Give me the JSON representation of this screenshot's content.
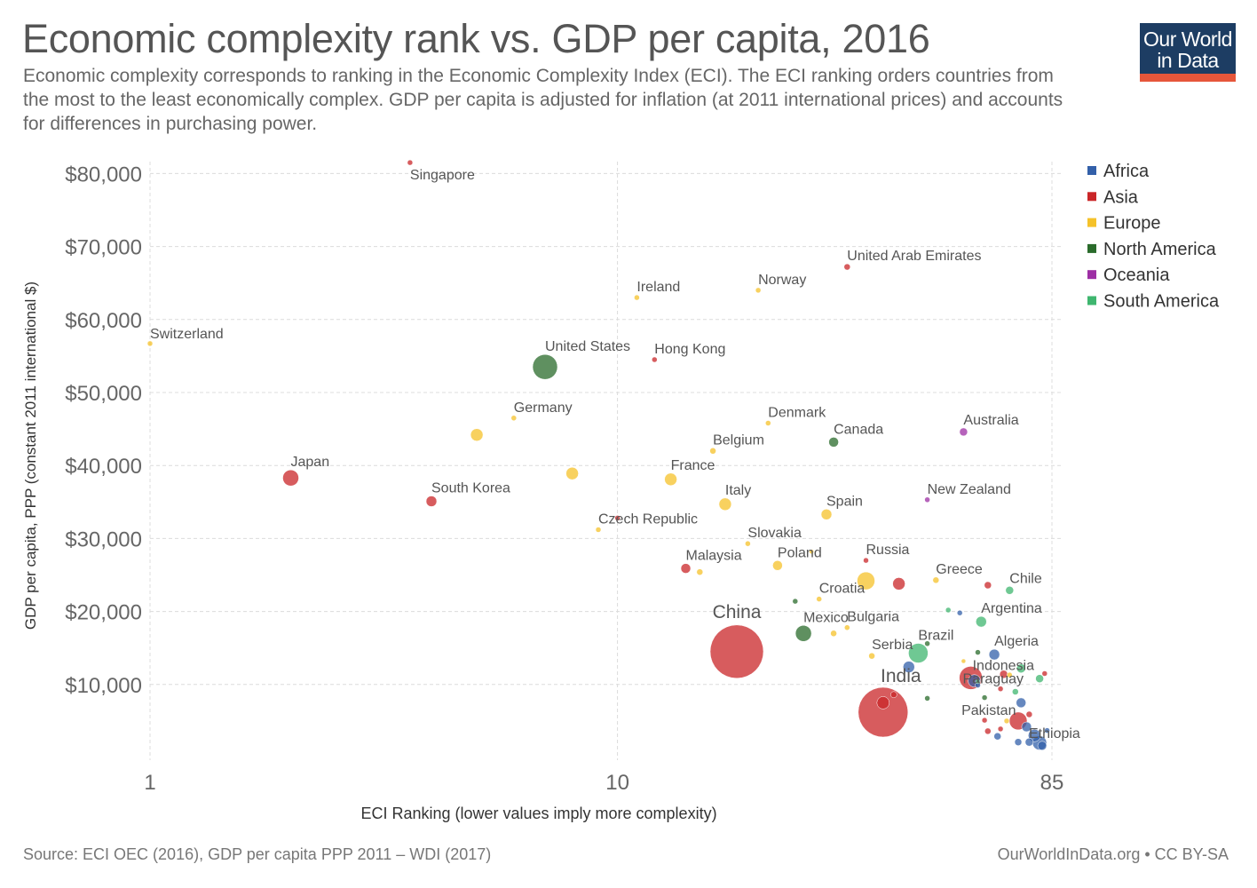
{
  "header": {
    "title": "Economic complexity rank vs. GDP per capita, 2016",
    "subtitle": "Economic complexity corresponds to ranking in the Economic Complexity Index (ECI). The ECI ranking orders countries from the most to the least economically complex. GDP per capita is adjusted for inflation (at 2011 international prices) and accounts for differences in purchasing power."
  },
  "logo": {
    "line1": "Our World",
    "line2": "in Data",
    "bg": "#1d3d63",
    "accent": "#e6563a"
  },
  "footer": {
    "source": "Source: ECI OEC (2016), GDP per capita PPP 2011 – WDI (2017)",
    "credit": "OurWorldInData.org • CC BY-SA"
  },
  "chart_data": {
    "type": "scatter",
    "xlabel": "ECI Ranking (lower values imply more complexity)",
    "ylabel": "GDP per capita, PPP (constant 2011 international $)",
    "x_scale": "log",
    "xlim": [
      1,
      85
    ],
    "x_ticks": [
      1,
      10,
      85
    ],
    "x_tick_labels": [
      "1",
      "10",
      "85"
    ],
    "ylim": [
      0,
      82000
    ],
    "y_ticks": [
      10000,
      20000,
      30000,
      40000,
      50000,
      60000,
      70000,
      80000
    ],
    "y_tick_labels": [
      "$10,000",
      "$20,000",
      "$30,000",
      "$40,000",
      "$50,000",
      "$60,000",
      "$70,000",
      "$80,000"
    ],
    "grid": true,
    "legend": {
      "placement": "right",
      "entries": [
        {
          "name": "Africa",
          "color": "#3360a9"
        },
        {
          "name": "Asia",
          "color": "#ca2628"
        },
        {
          "name": "Europe",
          "color": "#f5c22a"
        },
        {
          "name": "North America",
          "color": "#2a6b2b"
        },
        {
          "name": "Oceania",
          "color": "#9d2fa4"
        },
        {
          "name": "South America",
          "color": "#3fb66f"
        }
      ]
    },
    "points": [
      {
        "label": "Singapore",
        "region": "Asia",
        "x": 3.6,
        "y": 81500,
        "size": 3
      },
      {
        "label": "Switzerland",
        "region": "Europe",
        "x": 1,
        "y": 56700,
        "size": 3
      },
      {
        "label": "Ireland",
        "region": "Europe",
        "x": 11,
        "y": 63000,
        "size": 3
      },
      {
        "label": "Norway",
        "region": "Europe",
        "x": 20,
        "y": 64000,
        "size": 3
      },
      {
        "label": "United Arab Emirates",
        "region": "Asia",
        "x": 31,
        "y": 67200,
        "size": 3.5
      },
      {
        "label": "United States",
        "region": "North America",
        "x": 7,
        "y": 53500,
        "size": 14
      },
      {
        "label": "Hong Kong",
        "region": "Asia",
        "x": 12,
        "y": 54500,
        "size": 3
      },
      {
        "label": "Germany",
        "region": "Europe",
        "x": 6,
        "y": 46500,
        "size": 3
      },
      {
        "label": "",
        "region": "Europe",
        "x": 5,
        "y": 44200,
        "size": 7
      },
      {
        "label": "Japan",
        "region": "Asia",
        "x": 2,
        "y": 38300,
        "size": 9
      },
      {
        "label": "",
        "region": "Europe",
        "x": 8,
        "y": 38900,
        "size": 7
      },
      {
        "label": "Denmark",
        "region": "Europe",
        "x": 21,
        "y": 45800,
        "size": 3
      },
      {
        "label": "Canada",
        "region": "North America",
        "x": 29,
        "y": 43200,
        "size": 5.5
      },
      {
        "label": "Australia",
        "region": "Oceania",
        "x": 55,
        "y": 44600,
        "size": 4.5
      },
      {
        "label": "Belgium",
        "region": "Europe",
        "x": 16,
        "y": 42000,
        "size": 3.5
      },
      {
        "label": "France",
        "region": "Europe",
        "x": 13,
        "y": 38100,
        "size": 7
      },
      {
        "label": "South Korea",
        "region": "Asia",
        "x": 4,
        "y": 35100,
        "size": 6
      },
      {
        "label": "Italy",
        "region": "Europe",
        "x": 17,
        "y": 34700,
        "size": 7
      },
      {
        "label": "Spain",
        "region": "Europe",
        "x": 28,
        "y": 33300,
        "size": 6
      },
      {
        "label": "New Zealand",
        "region": "Oceania",
        "x": 46,
        "y": 35300,
        "size": 3
      },
      {
        "label": "Czech Republic",
        "region": "Europe",
        "x": 9.1,
        "y": 31200,
        "size": 3
      },
      {
        "label": "",
        "region": "Asia",
        "x": 10,
        "y": 32800,
        "size": 3
      },
      {
        "label": "Slovakia",
        "region": "Europe",
        "x": 19,
        "y": 29300,
        "size": 3
      },
      {
        "label": "",
        "region": "Europe",
        "x": 26,
        "y": 28200,
        "size": 2.5
      },
      {
        "label": "Poland",
        "region": "Europe",
        "x": 22,
        "y": 26300,
        "size": 5.5
      },
      {
        "label": "Malaysia",
        "region": "Asia",
        "x": 14,
        "y": 25900,
        "size": 5.5
      },
      {
        "label": "",
        "region": "Europe",
        "x": 15,
        "y": 25400,
        "size": 3.5
      },
      {
        "label": "Russia",
        "region": "Asia",
        "x": 34,
        "y": 27000,
        "size": 3
      },
      {
        "label": "",
        "region": "Europe",
        "x": 34,
        "y": 24200,
        "size": 10
      },
      {
        "label": "",
        "region": "Asia",
        "x": 40,
        "y": 23800,
        "size": 7
      },
      {
        "label": "Greece",
        "region": "Europe",
        "x": 48,
        "y": 24300,
        "size": 3.5
      },
      {
        "label": "",
        "region": "Asia",
        "x": 62,
        "y": 23600,
        "size": 4
      },
      {
        "label": "Chile",
        "region": "South America",
        "x": 69,
        "y": 22900,
        "size": 4.5
      },
      {
        "label": "Croatia",
        "region": "Europe",
        "x": 27,
        "y": 21700,
        "size": 3
      },
      {
        "label": "",
        "region": "North America",
        "x": 24,
        "y": 21400,
        "size": 3
      },
      {
        "label": "",
        "region": "South America",
        "x": 51,
        "y": 20200,
        "size": 3
      },
      {
        "label": "",
        "region": "Africa",
        "x": 54,
        "y": 19800,
        "size": 3
      },
      {
        "label": "Argentina",
        "region": "South America",
        "x": 60,
        "y": 18600,
        "size": 6
      },
      {
        "label": "China",
        "region": "Asia",
        "x": 18,
        "y": 14500,
        "size": 30
      },
      {
        "label": "Mexico",
        "region": "North America",
        "x": 25,
        "y": 17000,
        "size": 9
      },
      {
        "label": "Bulgaria",
        "region": "Europe",
        "x": 31,
        "y": 17800,
        "size": 3
      },
      {
        "label": "",
        "region": "Europe",
        "x": 29,
        "y": 17000,
        "size": 3.5
      },
      {
        "label": "Serbia",
        "region": "Europe",
        "x": 35,
        "y": 13900,
        "size": 3.5
      },
      {
        "label": "Brazil",
        "region": "South America",
        "x": 44,
        "y": 14300,
        "size": 11
      },
      {
        "label": "",
        "region": "North America",
        "x": 46,
        "y": 15600,
        "size": 3
      },
      {
        "label": "",
        "region": "North America",
        "x": 59,
        "y": 14400,
        "size": 3
      },
      {
        "label": "Algeria",
        "region": "Africa",
        "x": 64,
        "y": 14100,
        "size": 6
      },
      {
        "label": "",
        "region": "Europe",
        "x": 55,
        "y": 13200,
        "size": 2.5
      },
      {
        "label": "",
        "region": "Africa",
        "x": 42,
        "y": 12400,
        "size": 6.5
      },
      {
        "label": "Indonesia",
        "region": "Asia",
        "x": 57,
        "y": 10900,
        "size": 13
      },
      {
        "label": "",
        "region": "Africa",
        "x": 58,
        "y": 10500,
        "size": 7
      },
      {
        "label": "",
        "region": "Asia",
        "x": 67,
        "y": 11400,
        "size": 4.5
      },
      {
        "label": "",
        "region": "South America",
        "x": 73,
        "y": 12200,
        "size": 5
      },
      {
        "label": "",
        "region": "Europe",
        "x": 69,
        "y": 11300,
        "size": 3
      },
      {
        "label": "",
        "region": "South America",
        "x": 80,
        "y": 10800,
        "size": 4.5
      },
      {
        "label": "",
        "region": "Asia",
        "x": 82,
        "y": 11500,
        "size": 3
      },
      {
        "label": "Paraguay",
        "region": "South America",
        "x": 59,
        "y": 10400,
        "size": 2.5
      },
      {
        "label": "",
        "region": "Africa",
        "x": 59,
        "y": 9900,
        "size": 3
      },
      {
        "label": "",
        "region": "Asia",
        "x": 66,
        "y": 9400,
        "size": 3
      },
      {
        "label": "",
        "region": "South America",
        "x": 71,
        "y": 9000,
        "size": 3.5
      },
      {
        "label": "India",
        "region": "Asia",
        "x": 37,
        "y": 6200,
        "size": 28
      },
      {
        "label": "",
        "region": "Asia",
        "x": 37,
        "y": 7500,
        "size": 7
      },
      {
        "label": "",
        "region": "Asia",
        "x": 39,
        "y": 8600,
        "size": 3.5
      },
      {
        "label": "",
        "region": "North America",
        "x": 46,
        "y": 8100,
        "size": 3
      },
      {
        "label": "Pakistan",
        "region": "Asia",
        "x": 61,
        "y": 5100,
        "size": 3
      },
      {
        "label": "",
        "region": "North America",
        "x": 61,
        "y": 8200,
        "size": 3
      },
      {
        "label": "",
        "region": "Africa",
        "x": 73,
        "y": 7500,
        "size": 5.5
      },
      {
        "label": "",
        "region": "Asia",
        "x": 76,
        "y": 5900,
        "size": 3.5
      },
      {
        "label": "",
        "region": "Europe",
        "x": 68,
        "y": 5000,
        "size": 3
      },
      {
        "label": "Ethiopia",
        "region": "Africa",
        "x": 81,
        "y": 1600,
        "size": 5
      },
      {
        "label": "",
        "region": "Asia",
        "x": 72,
        "y": 5000,
        "size": 10
      },
      {
        "label": "",
        "region": "Africa",
        "x": 75,
        "y": 4200,
        "size": 5.5
      },
      {
        "label": "",
        "region": "Africa",
        "x": 78,
        "y": 3000,
        "size": 7
      },
      {
        "label": "",
        "region": "Africa",
        "x": 80,
        "y": 2000,
        "size": 8
      },
      {
        "label": "",
        "region": "Africa",
        "x": 83,
        "y": 3700,
        "size": 3
      },
      {
        "label": "",
        "region": "Africa",
        "x": 76,
        "y": 2100,
        "size": 4.5
      },
      {
        "label": "",
        "region": "Africa",
        "x": 72,
        "y": 2100,
        "size": 4
      },
      {
        "label": "",
        "region": "Africa",
        "x": 65,
        "y": 2900,
        "size": 4
      },
      {
        "label": "",
        "region": "Asia",
        "x": 62,
        "y": 3600,
        "size": 3.5
      },
      {
        "label": "",
        "region": "Asia",
        "x": 66,
        "y": 3900,
        "size": 3
      }
    ]
  }
}
